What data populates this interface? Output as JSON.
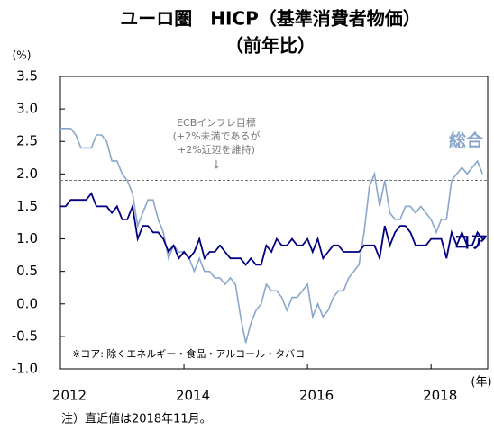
{
  "chart_data": {
    "type": "line",
    "title": "ユーロ圏　HICP（基準消費者物価）",
    "subtitle": "（前年比）",
    "y_label": "(%)",
    "x_label": "(年)",
    "note": "注）直近値は2018年11月。",
    "footnote": "※コア: 除くエネルギー・食品・アルコール・タバコ",
    "target_value": 1.9,
    "target_label": [
      "ECBインフレ目標",
      "(+2%未満であるが",
      "+2%近辺を維持)"
    ],
    "categories": [
      "2012",
      null,
      null,
      null,
      null,
      null,
      null,
      null,
      null,
      null,
      null,
      null,
      null,
      null,
      null,
      null,
      null,
      null,
      null,
      null,
      null,
      null,
      null,
      null,
      "2014",
      null,
      null,
      null,
      null,
      null,
      null,
      null,
      null,
      null,
      null,
      null,
      null,
      null,
      null,
      null,
      null,
      null,
      null,
      null,
      null,
      null,
      null,
      null,
      "2016",
      null,
      null,
      null,
      null,
      null,
      null,
      null,
      null,
      null,
      null,
      null,
      null,
      null,
      null,
      null,
      null,
      null,
      null,
      null,
      null,
      null,
      null,
      null,
      "2018",
      null,
      null,
      null,
      null,
      null,
      null,
      null,
      null,
      null,
      null
    ],
    "series": [
      {
        "name": "総合",
        "color": "#8aa7cb",
        "values": [
          2.7,
          2.7,
          2.7,
          2.6,
          2.4,
          2.4,
          2.4,
          2.6,
          2.6,
          2.5,
          2.2,
          2.2,
          2.0,
          1.9,
          1.7,
          1.2,
          1.4,
          1.6,
          1.6,
          1.3,
          1.1,
          0.7,
          0.9,
          0.8,
          0.8,
          0.7,
          0.5,
          0.7,
          0.5,
          0.5,
          0.4,
          0.4,
          0.3,
          0.4,
          0.3,
          -0.2,
          -0.6,
          -0.3,
          -0.1,
          0.0,
          0.3,
          0.2,
          0.2,
          0.1,
          -0.1,
          0.1,
          0.1,
          0.2,
          0.3,
          -0.2,
          0.0,
          -0.2,
          -0.1,
          0.1,
          0.2,
          0.2,
          0.4,
          0.5,
          0.6,
          1.1,
          1.8,
          2.0,
          1.5,
          1.9,
          1.4,
          1.3,
          1.3,
          1.5,
          1.5,
          1.4,
          1.5,
          1.4,
          1.3,
          1.1,
          1.3,
          1.3,
          1.9,
          2.0,
          2.1,
          2.0,
          2.1,
          2.2,
          2.0
        ]
      },
      {
        "name": "コア",
        "color": "#000080",
        "values": [
          1.5,
          1.5,
          1.6,
          1.6,
          1.6,
          1.6,
          1.7,
          1.5,
          1.5,
          1.5,
          1.4,
          1.5,
          1.3,
          1.3,
          1.5,
          1.0,
          1.2,
          1.2,
          1.1,
          1.1,
          1.0,
          0.8,
          0.9,
          0.7,
          0.8,
          0.7,
          0.8,
          1.0,
          0.7,
          0.8,
          0.8,
          0.9,
          0.8,
          0.7,
          0.7,
          0.7,
          0.6,
          0.7,
          0.6,
          0.6,
          0.9,
          0.8,
          1.0,
          0.9,
          0.9,
          1.0,
          0.9,
          0.9,
          1.0,
          0.8,
          1.0,
          0.7,
          0.8,
          0.9,
          0.9,
          0.8,
          0.8,
          0.8,
          0.8,
          0.9,
          0.9,
          0.9,
          0.7,
          1.2,
          0.9,
          1.1,
          1.2,
          1.2,
          1.1,
          0.9,
          0.9,
          0.9,
          1.0,
          1.0,
          1.0,
          0.7,
          1.1,
          0.9,
          1.1,
          0.9,
          0.9,
          1.1,
          1.0
        ]
      }
    ],
    "ylim": [
      -1,
      3.5
    ],
    "yticks": [
      {
        "value": -1,
        "label": "-1.0"
      },
      -0.5,
      {
        "value": 0,
        "label": "0.0"
      },
      0.5,
      {
        "value": 1,
        "label": "1.0"
      },
      1.5,
      {
        "value": 2,
        "label": "2.0"
      },
      2.5,
      {
        "value": 3,
        "label": "3.0"
      },
      3.5
    ]
  }
}
